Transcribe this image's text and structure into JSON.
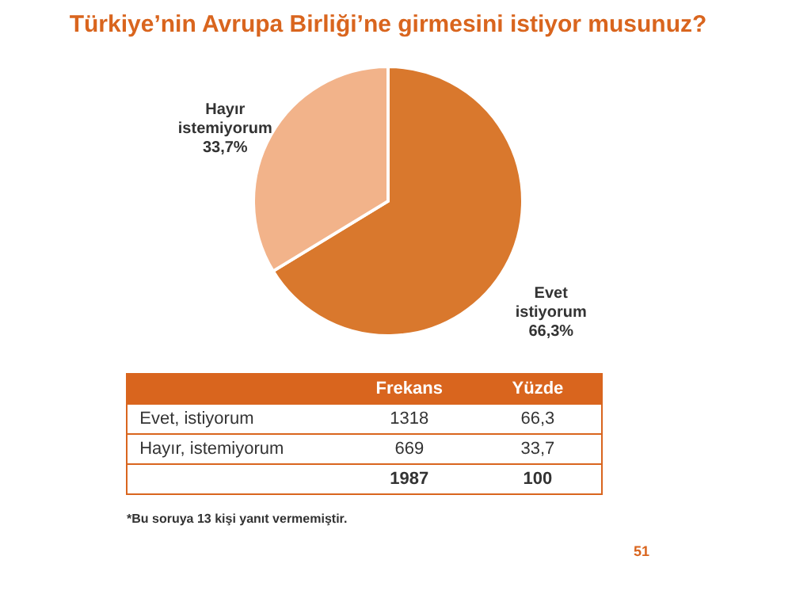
{
  "chart_data": [
    {
      "type": "pie",
      "title": "Türkiye’nin Avrupa Birliği’ne girmesini istiyor musunuz?",
      "categories": [
        "Evet istiyorum",
        "Hayır istemiyorum"
      ],
      "values": [
        66.3,
        33.7
      ],
      "colors": [
        "#d9782d",
        "#f2b38a"
      ],
      "value_labels": [
        "66,3%",
        "33,7%"
      ],
      "legend": false
    },
    {
      "type": "other",
      "categories": [
        "Frekans",
        "Yüzde"
      ],
      "y_categories": [
        "Evet, istiyorum",
        "Hayır, istemiyorum",
        null
      ],
      "cell_labels": [
        [
          "1318",
          "66,3"
        ],
        [
          "669",
          "33,7"
        ],
        [
          "1987",
          "100"
        ]
      ],
      "annotations": [
        "*Bu soruya 13 kişi yanıt vermemiştir.",
        "51"
      ]
    }
  ]
}
